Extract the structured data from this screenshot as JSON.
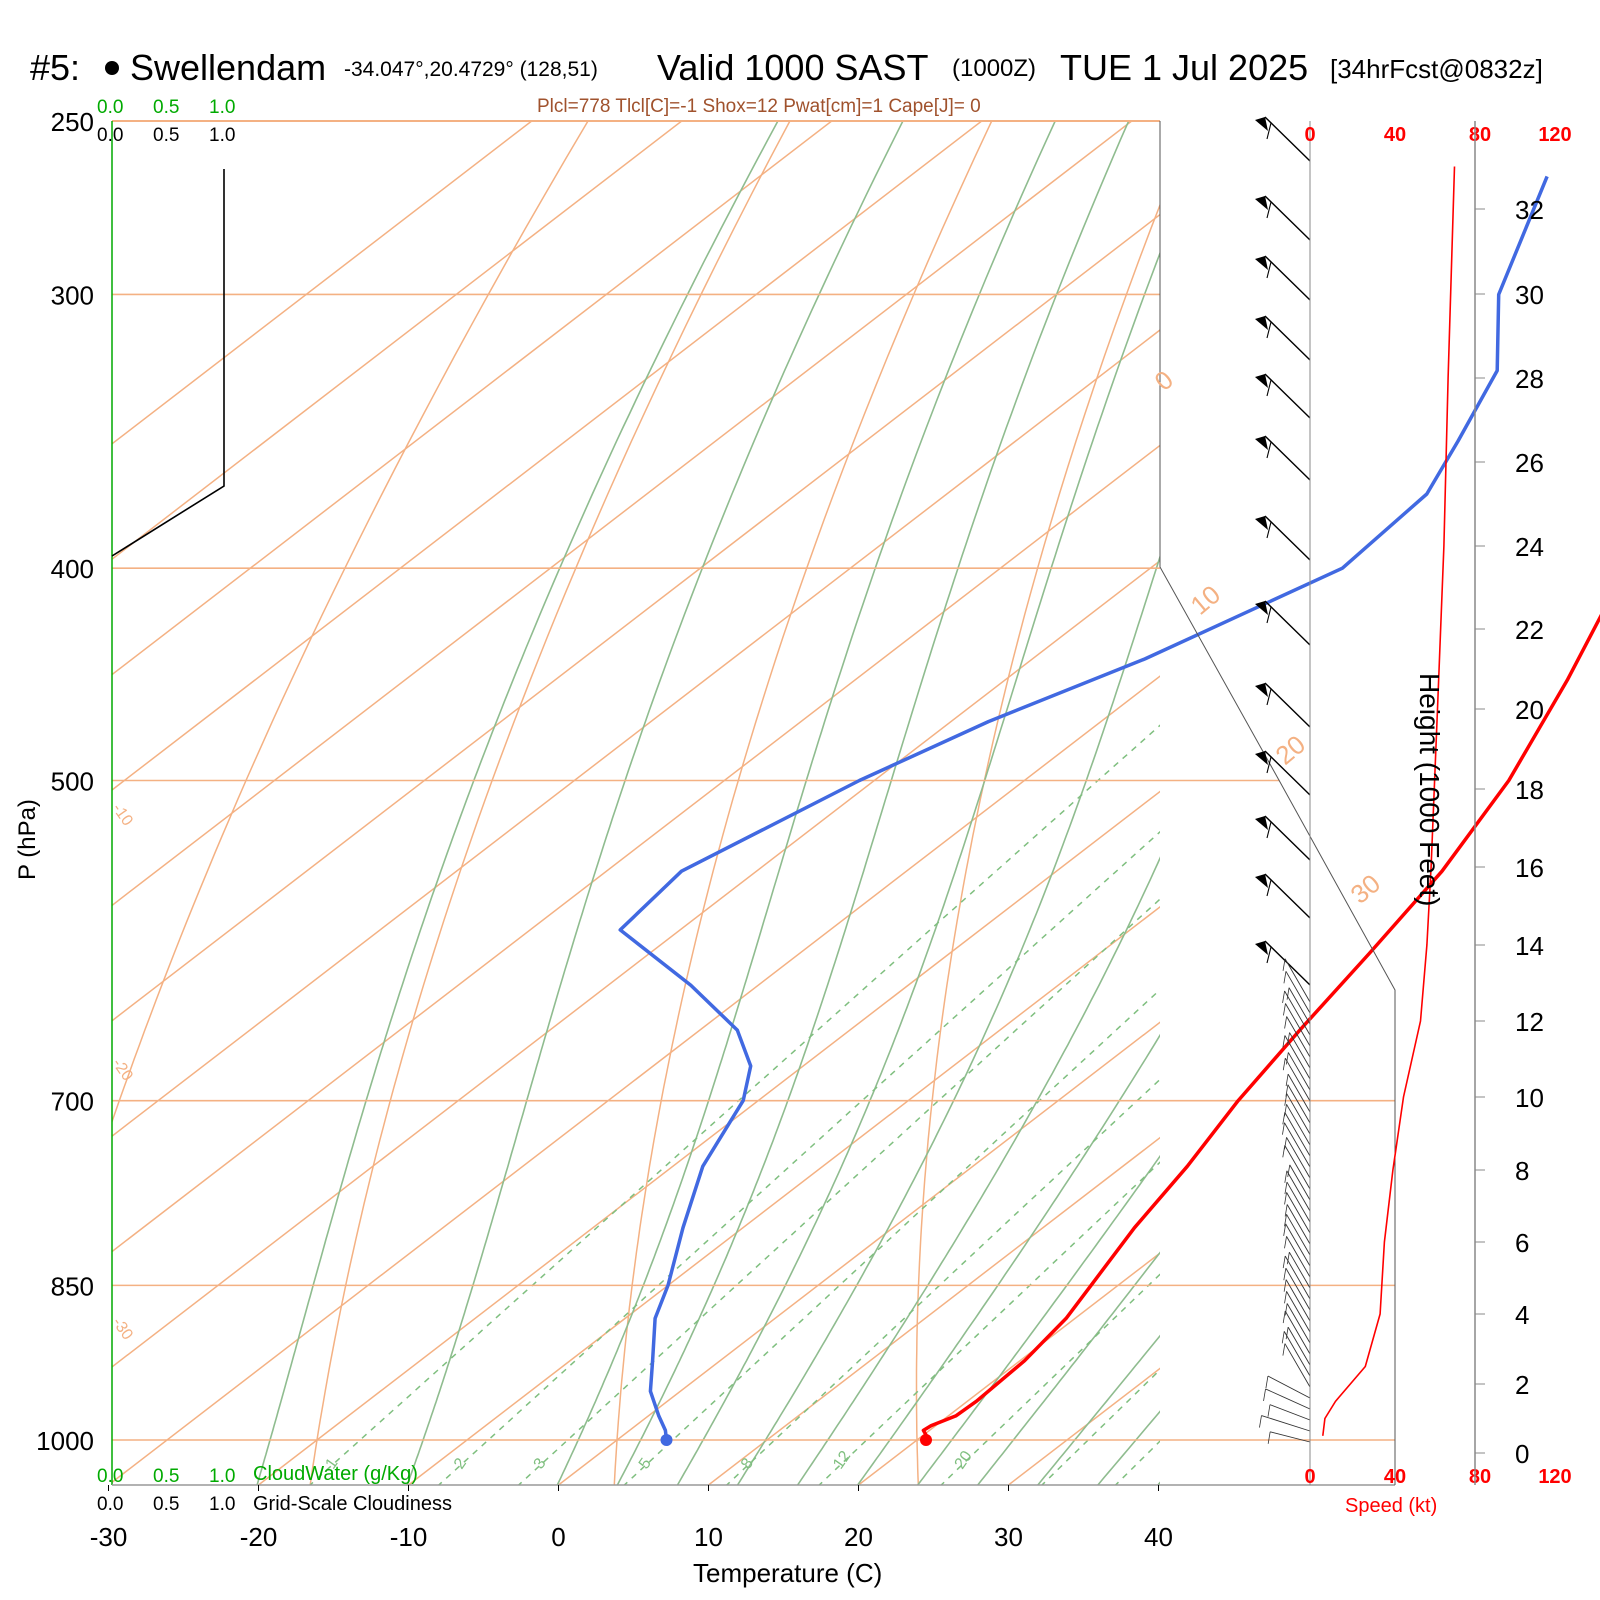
{
  "header": {
    "station": "#5:",
    "place": "Swellendam",
    "coords": "-34.047°,20.4729° (128,51)",
    "valid": "Valid 1000 SAST",
    "zulu": "(1000Z)",
    "date": "TUE 1 Jul 2025",
    "fcst": "[34hrFcst@0832z]",
    "indices": "Plcl=778 Tlcl[C]=-1 Shox=12 Pwat[cm]=1 Cape[J]= 0"
  },
  "labels": {
    "cw_scale": [
      "0.0",
      "0.5",
      "1.0"
    ],
    "cloud_scale": [
      "0.0",
      "0.5",
      "1.0"
    ],
    "cloudwater": "CloudWater (g/Kg)",
    "cloudiness": "Grid-Scale Cloudiness",
    "xlabel": "Temperature (C)",
    "ylabel": "P (hPa)",
    "height_label": "Height (1000 Feet)",
    "speed_label": "Speed (kt)"
  },
  "colors": {
    "temp": "#ff0000",
    "dewpoint": "#4169e1",
    "isotherm": "#f4b183",
    "moist_adiabat": "#8fbc8f",
    "mixing_ratio": "#7fbf7f",
    "cloud_green": "#00aa00",
    "speed": "#ff0000"
  },
  "chart_data": {
    "type": "skew-t",
    "xlabel": "Temperature (C)",
    "ylabel": "P (hPa)",
    "x_ticks": [
      -30,
      -20,
      -10,
      0,
      10,
      20,
      30,
      40
    ],
    "p_ticks": [
      250,
      300,
      400,
      500,
      700,
      850,
      1000
    ],
    "isotherm_labels": [
      -30,
      -20,
      -10,
      0,
      10,
      20,
      30
    ],
    "mixing_ratio_labels": [
      "1",
      "2",
      "3",
      "5",
      "8",
      "12",
      "20"
    ],
    "height_ticks_kft": [
      0,
      2,
      4,
      6,
      8,
      10,
      12,
      14,
      16,
      18,
      20,
      22,
      24,
      26,
      28,
      30,
      32
    ],
    "speed_ticks_kt": [
      0,
      40,
      80,
      120
    ],
    "temperature": [
      {
        "p": 1000,
        "t": 20.6
      },
      {
        "p": 995,
        "t": 20.2
      },
      {
        "p": 990,
        "t": 19.6
      },
      {
        "p": 985,
        "t": 19.7
      },
      {
        "p": 975,
        "t": 20.5
      },
      {
        "p": 960,
        "t": 20.6
      },
      {
        "p": 920,
        "t": 20.3
      },
      {
        "p": 880,
        "t": 19.4
      },
      {
        "p": 850,
        "t": 18.2
      },
      {
        "p": 800,
        "t": 16.1
      },
      {
        "p": 750,
        "t": 14.3
      },
      {
        "p": 700,
        "t": 12.0
      },
      {
        "p": 650,
        "t": 10.0
      },
      {
        "p": 600,
        "t": 8.0
      },
      {
        "p": 550,
        "t": 5.7
      },
      {
        "p": 500,
        "t": 2.3
      },
      {
        "p": 450,
        "t": -2.5
      },
      {
        "p": 400,
        "t": -8.3
      },
      {
        "p": 350,
        "t": -15.0
      },
      {
        "p": 300,
        "t": -24.2
      },
      {
        "p": 265,
        "t": -31.5
      }
    ],
    "dewpoint": [
      {
        "p": 1000,
        "t": 3.3
      },
      {
        "p": 990,
        "t": 2.4
      },
      {
        "p": 975,
        "t": 0.7
      },
      {
        "p": 950,
        "t": -2.0
      },
      {
        "p": 920,
        "t": -4.5
      },
      {
        "p": 880,
        "t": -8.0
      },
      {
        "p": 850,
        "t": -10.0
      },
      {
        "p": 800,
        "t": -14.0
      },
      {
        "p": 750,
        "t": -18.0
      },
      {
        "p": 700,
        "t": -21.0
      },
      {
        "p": 675,
        "t": -23.5
      },
      {
        "p": 650,
        "t": -27.5
      },
      {
        "p": 620,
        "t": -34.5
      },
      {
        "p": 585,
        "t": -44.0
      },
      {
        "p": 550,
        "t": -45.0
      },
      {
        "p": 500,
        "t": -41.0
      },
      {
        "p": 470,
        "t": -37.5
      },
      {
        "p": 440,
        "t": -32.5
      },
      {
        "p": 400,
        "t": -27.2
      },
      {
        "p": 370,
        "t": -28.0
      },
      {
        "p": 350,
        "t": -30.5
      },
      {
        "p": 325,
        "t": -34.0
      },
      {
        "p": 300,
        "t": -40.5
      },
      {
        "p": 265,
        "t": -47.5
      }
    ],
    "wind_speed_profile": [
      {
        "h_kft": 0.5,
        "kt": 6
      },
      {
        "h_kft": 1.0,
        "kt": 7
      },
      {
        "h_kft": 1.5,
        "kt": 12
      },
      {
        "h_kft": 2.5,
        "kt": 26
      },
      {
        "h_kft": 4.0,
        "kt": 33
      },
      {
        "h_kft": 6.0,
        "kt": 35
      },
      {
        "h_kft": 8.0,
        "kt": 39
      },
      {
        "h_kft": 10.0,
        "kt": 44
      },
      {
        "h_kft": 12.0,
        "kt": 52
      },
      {
        "h_kft": 14.0,
        "kt": 55
      },
      {
        "h_kft": 16.0,
        "kt": 57
      },
      {
        "h_kft": 20.0,
        "kt": 60
      },
      {
        "h_kft": 24.0,
        "kt": 63
      },
      {
        "h_kft": 28.0,
        "kt": 65
      },
      {
        "h_kft": 33.0,
        "kt": 68
      }
    ]
  }
}
